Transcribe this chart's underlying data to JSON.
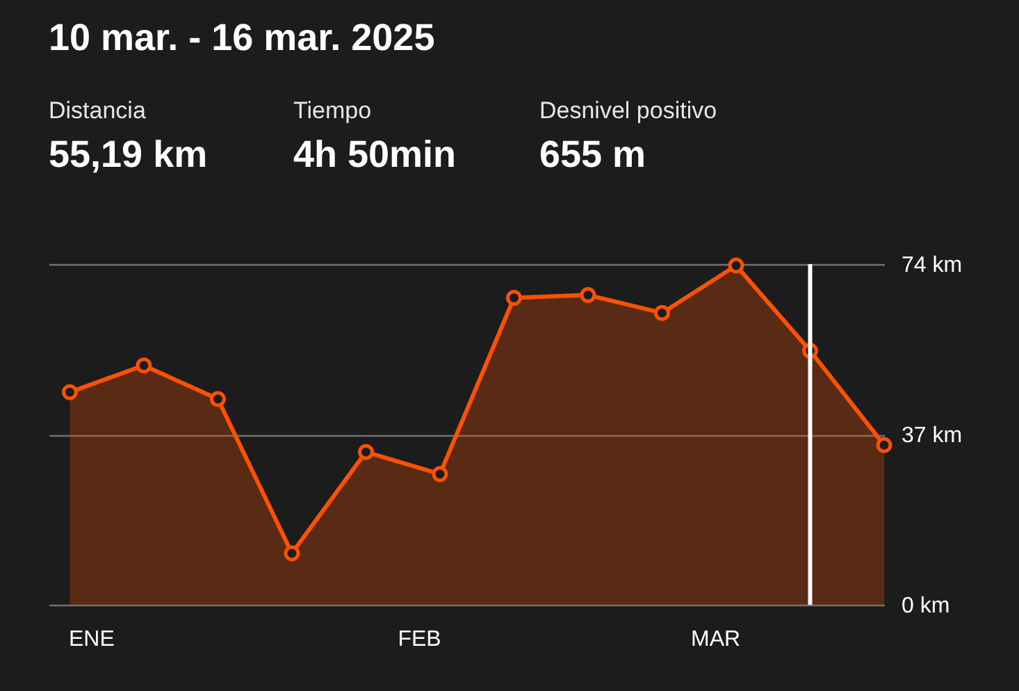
{
  "chart_data": {
    "type": "area",
    "title": "10 mar. - 16 mar. 2025",
    "annotations": [
      "Distancia",
      "55,19 km",
      "Tiempo",
      "4h 50min",
      "Desnivel positivo",
      "655 m"
    ],
    "x": [
      "2024-12-30",
      "2025-01-06",
      "2025-01-13",
      "2025-01-20",
      "2025-01-27",
      "2025-02-03",
      "2025-02-10",
      "2025-02-17",
      "2025-02-24",
      "2025-03-03",
      "2025-03-10",
      "2025-03-17"
    ],
    "series": [
      {
        "color": "#fc5200",
        "values": [
          46.2,
          52,
          44.7,
          11.2,
          33.2,
          28.4,
          66.7,
          67.3,
          63.4,
          73.7,
          55.19,
          34.7
        ]
      }
    ],
    "xlim": [
      "2024-12-28",
      "2025-03-17"
    ],
    "xticks": [
      {
        "value": "2025-01-01",
        "label": "ENE"
      },
      {
        "value": "2025-02-01",
        "label": "FEB"
      },
      {
        "value": "2025-03-01",
        "label": "MAR"
      }
    ],
    "ylim": [
      0,
      74
    ],
    "yticks": [
      {
        "value": 0,
        "label": "0 km"
      },
      {
        "value": 37,
        "label": "37 km"
      },
      {
        "value": 74,
        "label": "74 km"
      }
    ],
    "grid": "y",
    "marker": "circle",
    "ref_lines": [
      {
        "axis": "x",
        "value": "2025-03-10",
        "color": "#ffffff"
      }
    ]
  }
}
